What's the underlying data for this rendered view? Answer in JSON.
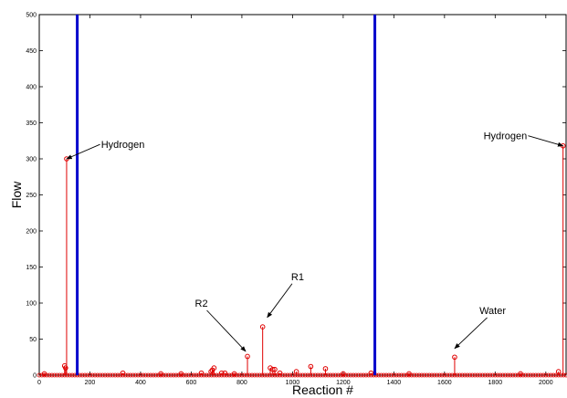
{
  "chart_data": {
    "type": "stem",
    "title": "",
    "xlabel": "Reaction #",
    "ylabel": "Flow",
    "xlim": [
      0,
      2080
    ],
    "ylim": [
      0,
      500
    ],
    "xticks": [
      0,
      200,
      400,
      600,
      800,
      1000,
      1200,
      1400,
      1600,
      1800,
      2000
    ],
    "yticks": [
      0,
      50,
      100,
      150,
      200,
      250,
      300,
      350,
      400,
      450,
      500
    ],
    "grid": false,
    "colors": {
      "stem": "#e00000",
      "divider": "#0000cc",
      "axis": "#000000"
    },
    "dividers_x": [
      150,
      1325
    ],
    "series": [
      {
        "points": [
          [
            108,
            300
          ],
          [
            2068,
            318
          ],
          [
            882,
            67
          ],
          [
            1640,
            25
          ],
          [
            822,
            26
          ],
          [
            100,
            13
          ],
          [
            104,
            10
          ],
          [
            690,
            10
          ],
          [
            683,
            7
          ],
          [
            678,
            5
          ],
          [
            1072,
            12
          ],
          [
            1130,
            9
          ],
          [
            912,
            10
          ],
          [
            922,
            8
          ],
          [
            930,
            8
          ],
          [
            1015,
            5
          ],
          [
            330,
            3
          ],
          [
            720,
            3
          ],
          [
            733,
            3
          ],
          [
            950,
            3
          ],
          [
            2050,
            5
          ],
          [
            20,
            2
          ],
          [
            480,
            2
          ],
          [
            560,
            2
          ],
          [
            640,
            3
          ],
          [
            770,
            2
          ],
          [
            1200,
            2
          ],
          [
            1310,
            3
          ],
          [
            1460,
            2
          ],
          [
            1900,
            2
          ]
        ],
        "baseline_markers_step": 10
      }
    ],
    "annotations": [
      {
        "text": "Hydrogen",
        "target": [
          108,
          300
        ],
        "label_at": [
          330,
          320
        ]
      },
      {
        "text": "Hydrogen",
        "target": [
          2068,
          318
        ],
        "label_at": [
          1840,
          332
        ]
      },
      {
        "text": "R1",
        "target": [
          900,
          80
        ],
        "label_at": [
          1020,
          137
        ]
      },
      {
        "text": "R2",
        "target": [
          815,
          33
        ],
        "label_at": [
          640,
          100
        ]
      },
      {
        "text": "Water",
        "target": [
          1640,
          37
        ],
        "label_at": [
          1790,
          90
        ]
      }
    ]
  }
}
